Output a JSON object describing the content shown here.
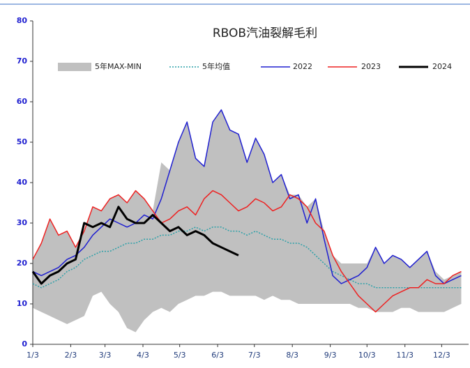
{
  "chart_data": {
    "type": "line",
    "title": "RBOB汽油裂解毛利",
    "x": [
      0,
      7,
      14,
      21,
      28,
      35,
      42,
      49,
      56,
      63,
      70,
      77,
      84,
      91,
      98,
      105,
      112,
      119,
      126,
      133,
      140,
      147,
      154,
      161,
      168,
      175,
      182,
      189,
      196,
      203,
      210,
      217,
      224,
      231,
      238,
      245,
      252,
      259,
      266,
      273,
      280,
      287,
      294,
      301,
      308,
      315,
      322,
      329,
      336,
      343,
      350
    ],
    "xlim": [
      0,
      356
    ],
    "xticks": [
      {
        "value": 0,
        "label": "1/3"
      },
      {
        "value": 31,
        "label": "2/3"
      },
      {
        "value": 59,
        "label": "3/3"
      },
      {
        "value": 90,
        "label": "4/3"
      },
      {
        "value": 120,
        "label": "5/3"
      },
      {
        "value": 151,
        "label": "6/3"
      },
      {
        "value": 181,
        "label": "7/3"
      },
      {
        "value": 212,
        "label": "8/3"
      },
      {
        "value": 243,
        "label": "9/3"
      },
      {
        "value": 273,
        "label": "10/3"
      },
      {
        "value": 304,
        "label": "11/3"
      },
      {
        "value": 334,
        "label": "12/3"
      }
    ],
    "ylim": [
      0,
      80
    ],
    "yticks": [
      0,
      10,
      20,
      30,
      40,
      50,
      60,
      70,
      80
    ],
    "band": {
      "name": "5年MAX-MIN",
      "color": "#c0c0c0",
      "max": [
        21,
        25,
        31,
        27,
        28,
        24,
        28,
        34,
        33,
        36,
        37,
        35,
        38,
        36,
        33,
        45,
        43,
        50,
        55,
        46,
        44,
        55,
        58,
        53,
        52,
        45,
        51,
        47,
        40,
        42,
        37,
        37,
        34,
        36,
        28,
        22,
        20,
        20,
        20,
        20,
        24,
        20,
        22,
        21,
        19,
        21,
        23,
        18,
        16,
        17,
        18
      ],
      "min": [
        9,
        8,
        7,
        6,
        5,
        6,
        7,
        12,
        13,
        10,
        8,
        4,
        3,
        6,
        8,
        9,
        8,
        10,
        11,
        12,
        12,
        13,
        13,
        12,
        12,
        12,
        12,
        11,
        12,
        11,
        11,
        10,
        10,
        10,
        10,
        10,
        10,
        10,
        9,
        9,
        8,
        8,
        8,
        9,
        9,
        8,
        8,
        8,
        8,
        9,
        10
      ]
    },
    "series": [
      {
        "name": "5年均值",
        "color": "#2aa0a8",
        "dash": true,
        "values": [
          15,
          14,
          15,
          16,
          18,
          19,
          21,
          22,
          23,
          23,
          24,
          25,
          25,
          26,
          26,
          27,
          27,
          28,
          28,
          29,
          28,
          29,
          29,
          28,
          28,
          27,
          28,
          27,
          26,
          26,
          25,
          25,
          24,
          22,
          20,
          18,
          17,
          16,
          15,
          15,
          14,
          14,
          14,
          14,
          14,
          14,
          14,
          14,
          14,
          14,
          14
        ]
      },
      {
        "name": "2022",
        "color": "#1f1fd0",
        "values": [
          18,
          17,
          18,
          19,
          21,
          22,
          24,
          27,
          29,
          31,
          30,
          29,
          30,
          32,
          31,
          36,
          43,
          50,
          55,
          46,
          44,
          55,
          58,
          53,
          52,
          45,
          51,
          47,
          40,
          42,
          36,
          37,
          30,
          36,
          26,
          17,
          15,
          16,
          17,
          19,
          24,
          20,
          22,
          21,
          19,
          21,
          23,
          17,
          15,
          16,
          17
        ]
      },
      {
        "name": "2023",
        "color": "#ee2020",
        "values": [
          21,
          25,
          31,
          27,
          28,
          24,
          28,
          34,
          33,
          36,
          37,
          35,
          38,
          36,
          33,
          30,
          31,
          33,
          34,
          32,
          36,
          38,
          37,
          35,
          33,
          34,
          36,
          35,
          33,
          34,
          37,
          36,
          34,
          30,
          28,
          22,
          18,
          15,
          12,
          10,
          8,
          10,
          12,
          13,
          14,
          14,
          16,
          15,
          15,
          17,
          18
        ]
      },
      {
        "name": "2024",
        "color": "#000000",
        "width": 3,
        "values": [
          18,
          15,
          17,
          18,
          20,
          21,
          30,
          29,
          30,
          29,
          34,
          31,
          30,
          30,
          32,
          30,
          28,
          29,
          27,
          28,
          27,
          25,
          24,
          23,
          22,
          null,
          null,
          null,
          null,
          null,
          null,
          null,
          null,
          null,
          null,
          null,
          null,
          null,
          null,
          null,
          null,
          null,
          null,
          null,
          null,
          null,
          null,
          null,
          null,
          null,
          null
        ]
      }
    ]
  }
}
